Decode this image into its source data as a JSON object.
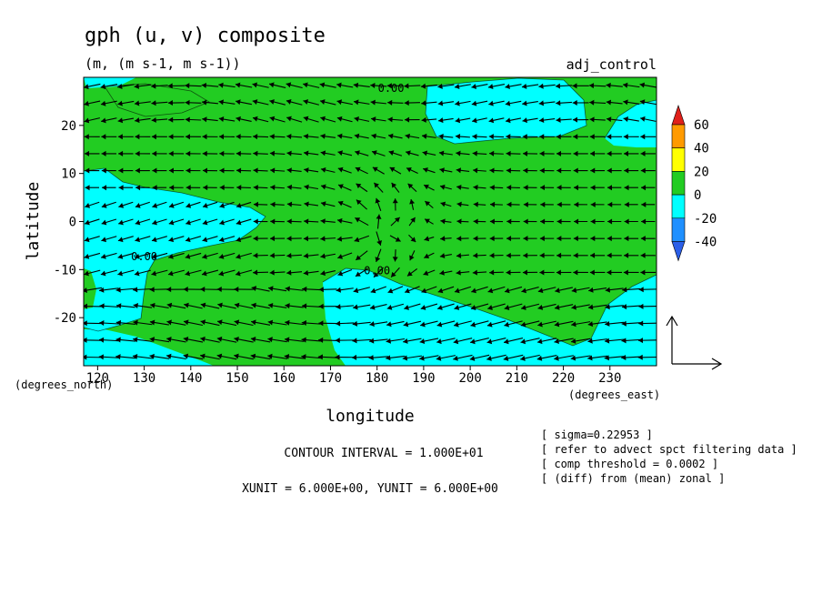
{
  "chart_data": {
    "type": "contour_vector",
    "title": "gph (u, v) composite",
    "subtitle": "(m, (m s-1, m s-1))",
    "run_label": "adj_control",
    "xlabel": "longitude",
    "ylabel": "latitude",
    "x_unit_label": "(degrees_east)",
    "y_unit_label": "(degrees_north)",
    "xlim": [
      117,
      240
    ],
    "ylim": [
      -30,
      30
    ],
    "x_ticks": [
      120,
      130,
      140,
      150,
      160,
      170,
      180,
      190,
      200,
      210,
      220,
      230
    ],
    "y_ticks": [
      -20,
      -10,
      0,
      10,
      20
    ],
    "contour_labels": [
      {
        "text": "0.00",
        "x": 183,
        "y": 27
      },
      {
        "text": "0.00",
        "x": 130,
        "y": -8
      },
      {
        "text": "0.00",
        "x": 180,
        "y": -11
      }
    ],
    "colorbar": {
      "levels": [
        60,
        40,
        20,
        0,
        -20,
        -40
      ],
      "colors": [
        "#e0201a",
        "#ff9a00",
        "#ffff00",
        "#22cc22",
        "#00ffff",
        "#1f90ff",
        "#2b5fe8"
      ]
    },
    "contour_interval": "CONTOUR INTERVAL = 1.000E+01",
    "vector_units": "XUNIT = 6.000E+00, YUNIT = 6.000E+00",
    "notes": [
      "[ sigma=0.22953 ]",
      "[ refer to advect spct filtering data ]",
      "[ comp threshold = 0.0002 ]",
      "[ (diff) from (mean) zonal ]"
    ]
  }
}
